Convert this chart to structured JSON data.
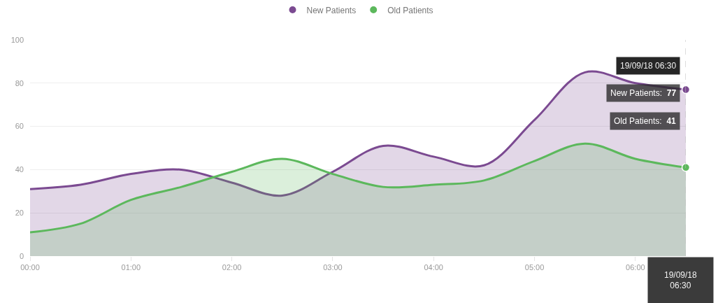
{
  "chart_data": {
    "type": "area",
    "legend": "top",
    "grid": "y",
    "x": [
      0,
      0.5,
      1,
      1.5,
      2,
      2.5,
      3,
      3.5,
      4,
      4.5,
      5,
      5.5,
      6,
      6.5
    ],
    "xlim": [
      0,
      6.5
    ],
    "xticks": [
      {
        "value": 0,
        "label": "00:00"
      },
      {
        "value": 1,
        "label": "01:00"
      },
      {
        "value": 2,
        "label": "02:00"
      },
      {
        "value": 3,
        "label": "03:00"
      },
      {
        "value": 4,
        "label": "04:00"
      },
      {
        "value": 5,
        "label": "05:00"
      },
      {
        "value": 6,
        "label": "06:00"
      }
    ],
    "ylim": [
      0,
      100
    ],
    "yticks": [
      0,
      20,
      40,
      60,
      80,
      100
    ],
    "series": [
      {
        "name": "New Patients",
        "color": "#7b4a91",
        "values": [
          31,
          33,
          38,
          40,
          34,
          28,
          39,
          51,
          46,
          42,
          63,
          85,
          80,
          77
        ]
      },
      {
        "name": "Old Patients",
        "color": "#5cb85c",
        "values": [
          11,
          15,
          26,
          32,
          39,
          45,
          38,
          32,
          33,
          35,
          44,
          52,
          45,
          41
        ]
      }
    ],
    "ref_lines": [
      {
        "axis": "x",
        "value": 6.5,
        "label": "19/09/18 06:30",
        "line_style": "dashed",
        "color": "#bbbbbb"
      }
    ],
    "annotations": [
      "19/09/18 06:30",
      "New Patients: 77",
      "Old Patients: 41"
    ]
  }
}
